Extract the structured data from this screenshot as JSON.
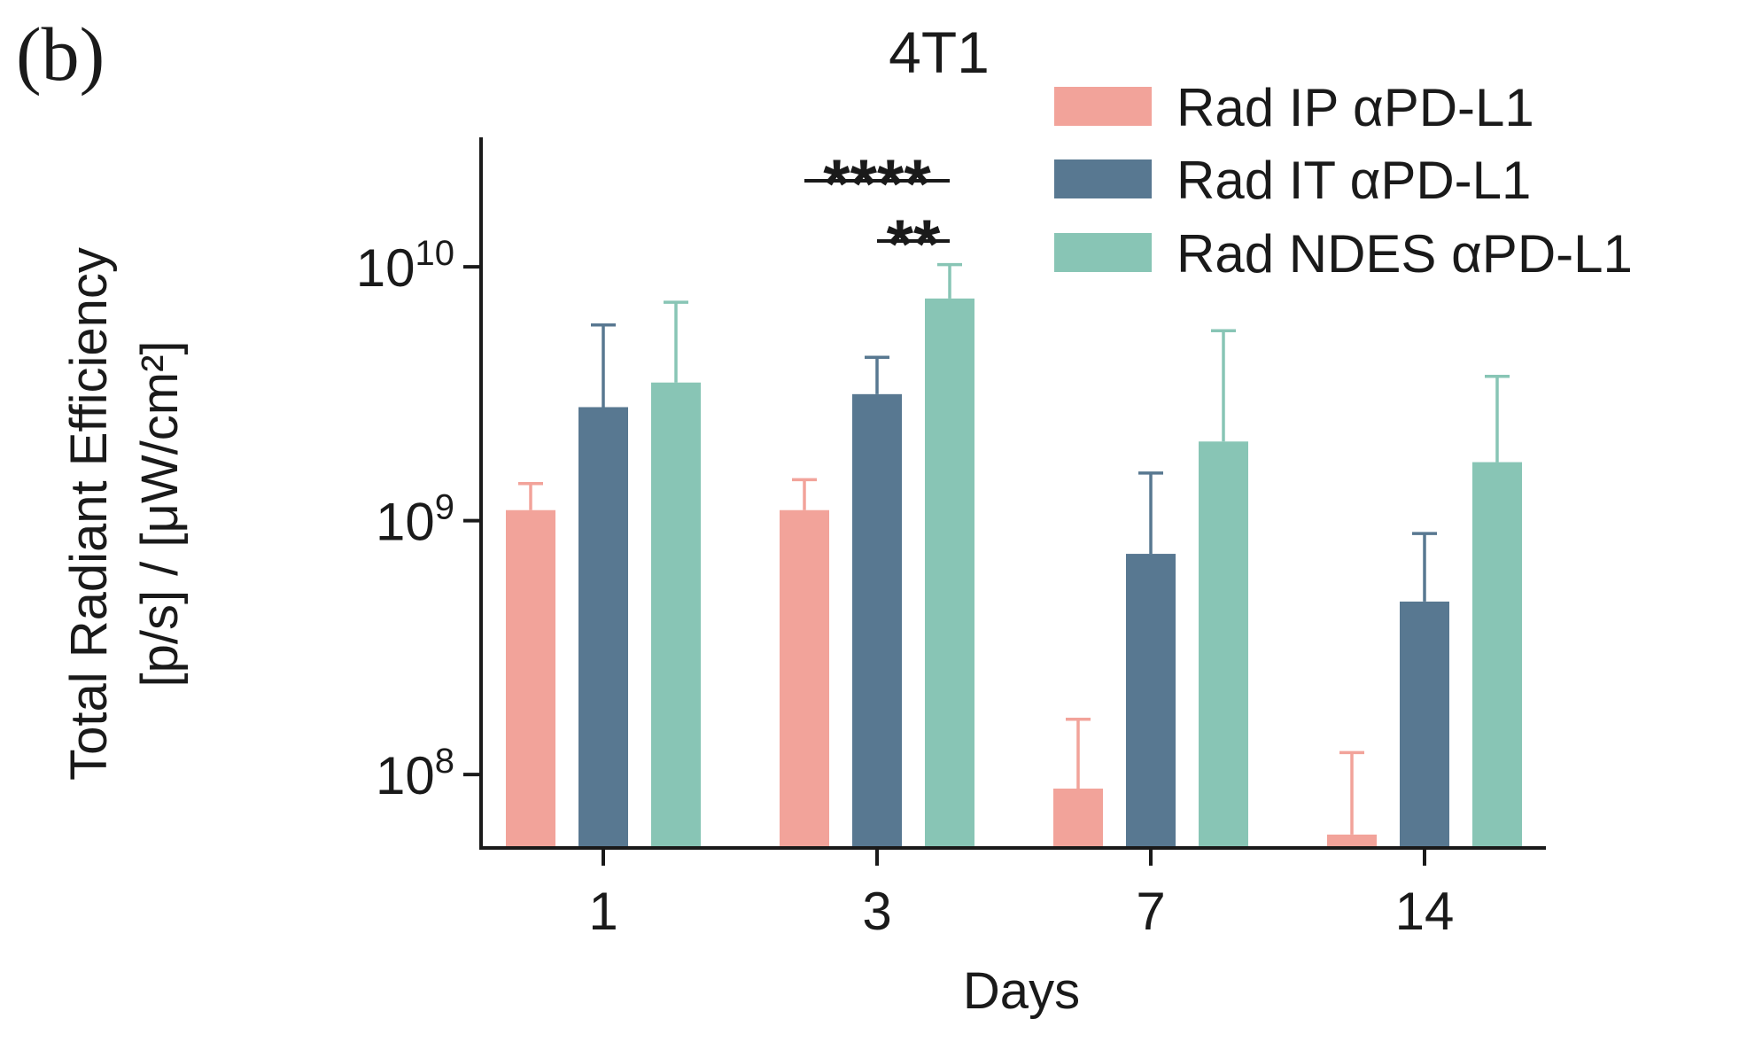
{
  "panel_label": "(b)",
  "chart_data": {
    "type": "bar",
    "title": "4T1",
    "xlabel": "Days",
    "ylabel_line1": "Total Radiant Efficiency",
    "ylabel_line2": "[p/s] / [μW/cm²]",
    "yscale": "log",
    "ylim": [
      50000000,
      30000000000
    ],
    "yticks": [
      {
        "value": 100000000,
        "base": "10",
        "exp": "8"
      },
      {
        "value": 1000000000,
        "base": "10",
        "exp": "9"
      },
      {
        "value": 10000000000,
        "base": "10",
        "exp": "10"
      }
    ],
    "categories": [
      "1",
      "3",
      "7",
      "14"
    ],
    "series": [
      {
        "name": "Rad IP αPD-L1",
        "color": "#F2A39A",
        "values": [
          1100000000,
          1100000000,
          88000000,
          58000000
        ],
        "error_upper": [
          1400000000,
          1450000000,
          165000000,
          122000000
        ]
      },
      {
        "name": "Rad IT αPD-L1",
        "color": "#587891",
        "values": [
          2800000000,
          3150000000,
          740000000,
          480000000
        ],
        "error_upper": [
          5900000000,
          4400000000,
          1540000000,
          890000000
        ]
      },
      {
        "name": "Rad NDES αPD-L1",
        "color": "#88C5B5",
        "values": [
          3500000000,
          7500000000,
          2050000000,
          1700000000
        ],
        "error_upper": [
          7250000000,
          10200000000,
          5600000000,
          3700000000
        ]
      }
    ],
    "significance": [
      {
        "label": "****",
        "category": "3",
        "from_series": 0,
        "to_series": 2
      },
      {
        "label": "**",
        "category": "3",
        "from_series": 1,
        "to_series": 2
      }
    ],
    "legend_position": "top-right",
    "grid": false
  }
}
